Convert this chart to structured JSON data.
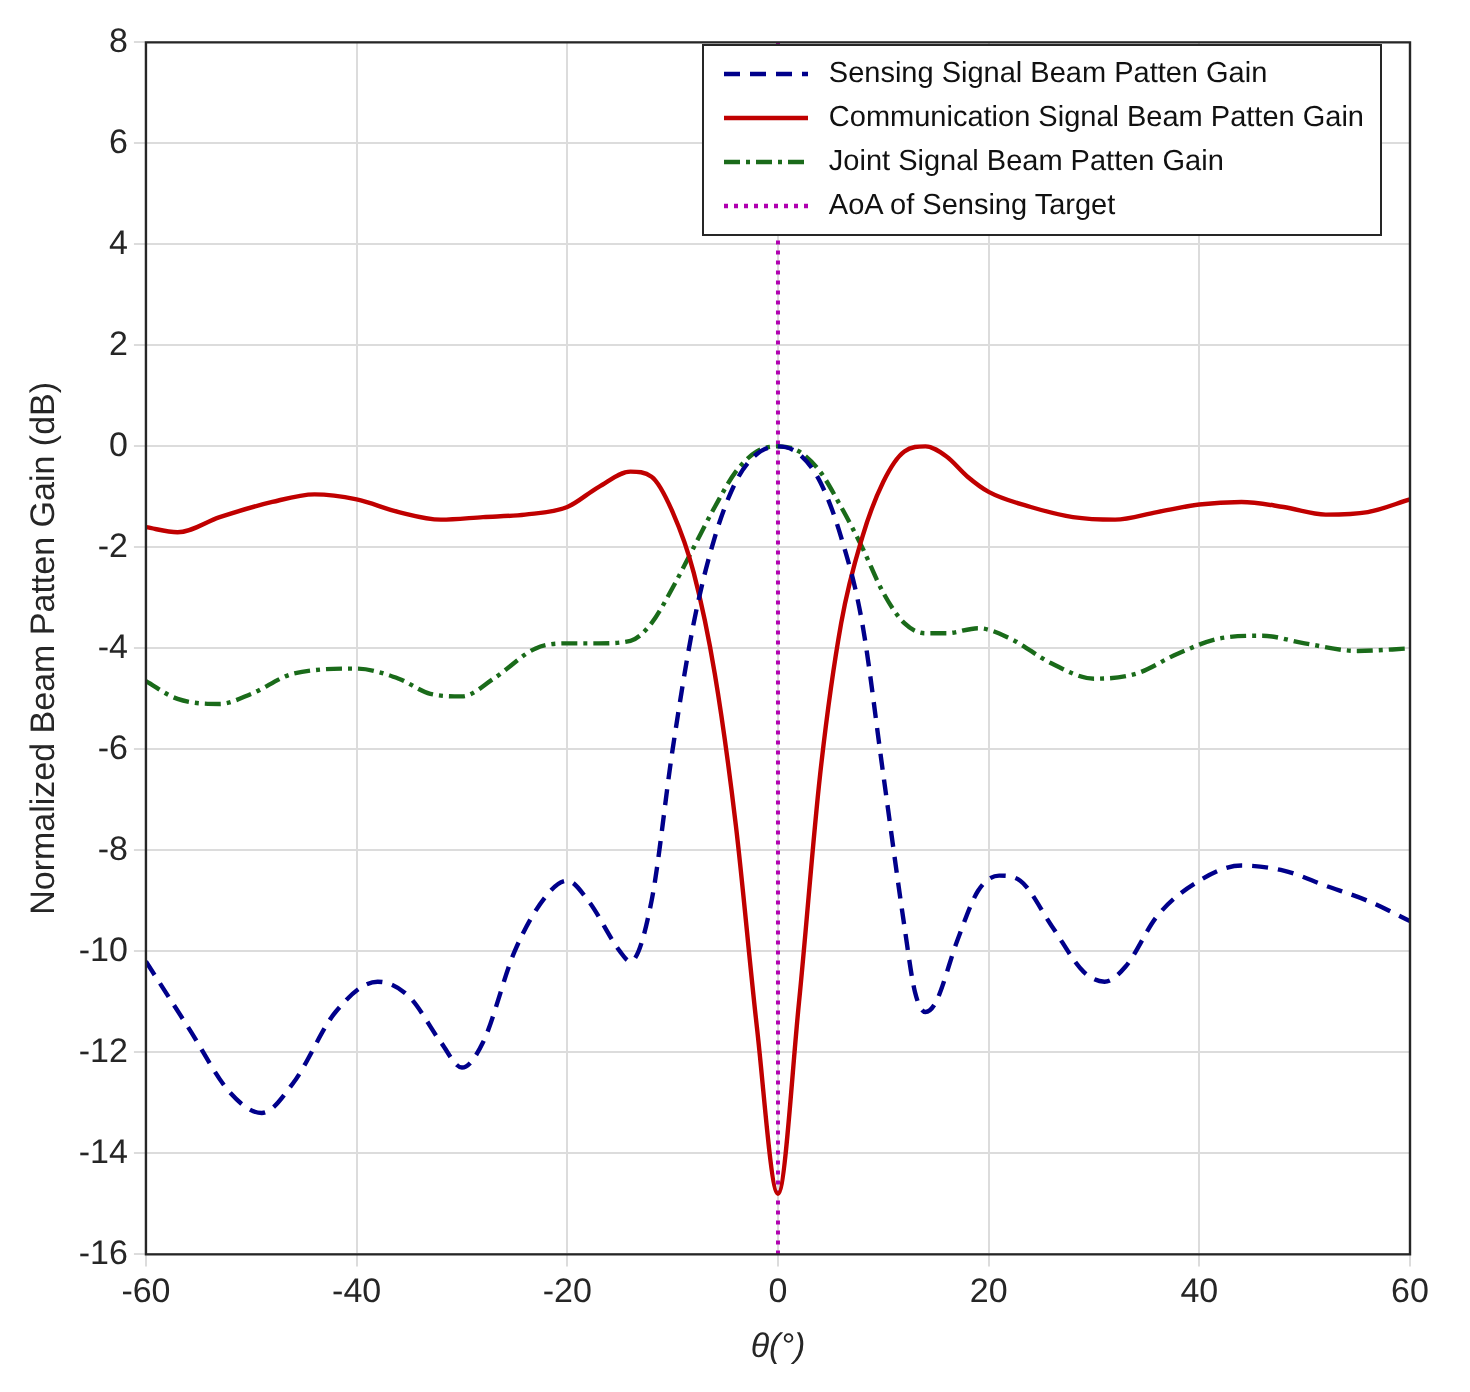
{
  "chart_data": {
    "type": "line",
    "xlabel": "θ(°)",
    "ylabel": "Normalized Beam Patten Gain (dB)",
    "xlim": [
      -60,
      60
    ],
    "xticks": [
      -60,
      -40,
      -20,
      0,
      20,
      40,
      60
    ],
    "ylim": [
      -16,
      8
    ],
    "yticks": [
      -16,
      -14,
      -12,
      -10,
      -8,
      -6,
      -4,
      -2,
      0,
      2,
      4,
      6,
      8
    ],
    "grid": true,
    "legend": "top right",
    "marker": "none",
    "series": [
      {
        "name": "Sensing Signal Beam Patten Gain",
        "color": "#00008b",
        "line_style": "dashed",
        "x": [
          -60,
          -56,
          -52,
          -49,
          -46,
          -42,
          -38,
          -35,
          -32,
          -30,
          -28,
          -25,
          -22,
          -20,
          -18,
          -15,
          -14,
          -12,
          -10,
          -8,
          -6,
          -4,
          -2,
          0,
          2,
          4,
          6,
          8,
          10,
          12,
          13,
          14,
          15,
          17,
          19,
          21,
          23,
          26,
          29,
          31,
          33,
          36,
          40,
          44,
          48,
          52,
          56,
          60
        ],
        "values": [
          -10.2,
          -11.5,
          -12.8,
          -13.2,
          -12.6,
          -11.2,
          -10.6,
          -10.9,
          -11.8,
          -12.3,
          -11.8,
          -10.0,
          -8.9,
          -8.6,
          -9.0,
          -10.0,
          -10.2,
          -9.0,
          -6.0,
          -3.5,
          -1.8,
          -0.7,
          -0.15,
          0,
          -0.15,
          -0.7,
          -1.8,
          -3.5,
          -6.5,
          -9.5,
          -10.8,
          -11.2,
          -11.0,
          -9.8,
          -8.8,
          -8.5,
          -8.6,
          -9.5,
          -10.4,
          -10.6,
          -10.3,
          -9.3,
          -8.6,
          -8.3,
          -8.4,
          -8.7,
          -9.0,
          -9.4
        ]
      },
      {
        "name": "Communication Signal Beam Patten Gain",
        "color": "#c00000",
        "line_style": "solid",
        "x": [
          -60,
          -57,
          -53,
          -48,
          -44,
          -40,
          -36,
          -32,
          -28,
          -24,
          -20,
          -17,
          -14,
          -12,
          -10,
          -8,
          -6,
          -4,
          -2,
          0,
          2,
          4,
          6,
          8,
          10,
          12,
          14,
          16,
          18,
          20,
          24,
          28,
          32,
          36,
          40,
          44,
          48,
          52,
          56,
          60
        ],
        "values": [
          -1.6,
          -1.7,
          -1.4,
          -1.1,
          -0.95,
          -1.05,
          -1.3,
          -1.45,
          -1.4,
          -1.35,
          -1.2,
          -0.8,
          -0.5,
          -0.6,
          -1.3,
          -2.5,
          -4.5,
          -7.5,
          -11.5,
          -14.8,
          -11.0,
          -6.5,
          -3.5,
          -1.8,
          -0.7,
          -0.1,
          0,
          -0.2,
          -0.6,
          -0.9,
          -1.2,
          -1.4,
          -1.45,
          -1.3,
          -1.15,
          -1.1,
          -1.2,
          -1.35,
          -1.3,
          -1.05
        ]
      },
      {
        "name": "Joint Signal Beam Patten Gain",
        "color": "#1a6b1a",
        "line_style": "dashdot",
        "x": [
          -60,
          -57,
          -53,
          -50,
          -46,
          -40,
          -36,
          -33,
          -30,
          -27,
          -23,
          -20,
          -17,
          -14,
          -12,
          -10,
          -8,
          -6,
          -4,
          -2,
          0,
          2,
          4,
          6,
          8,
          10,
          12,
          14,
          16,
          19,
          22,
          26,
          30,
          34,
          38,
          42,
          46,
          50,
          55,
          60
        ],
        "values": [
          -4.65,
          -5.0,
          -5.1,
          -4.9,
          -4.5,
          -4.4,
          -4.6,
          -4.9,
          -4.95,
          -4.6,
          -4.0,
          -3.9,
          -3.9,
          -3.85,
          -3.5,
          -2.8,
          -2.0,
          -1.2,
          -0.5,
          -0.1,
          0,
          -0.1,
          -0.5,
          -1.2,
          -2.0,
          -2.9,
          -3.5,
          -3.7,
          -3.7,
          -3.6,
          -3.8,
          -4.3,
          -4.6,
          -4.5,
          -4.1,
          -3.8,
          -3.75,
          -3.9,
          -4.05,
          -4.0
        ]
      }
    ],
    "ref_lines": [
      {
        "axis": "x",
        "value": 0,
        "label": "AoA of Sensing Target",
        "color": "#b000b0",
        "line_style": "dotted"
      }
    ]
  }
}
